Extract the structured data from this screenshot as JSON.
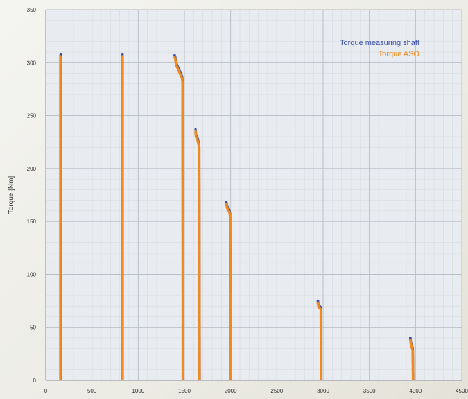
{
  "chart_data": {
    "type": "line",
    "title": "",
    "xlabel": "",
    "ylabel": "Torque [Nm]",
    "xlim": [
      0,
      4500
    ],
    "ylim": [
      0,
      350
    ],
    "x_ticks": [
      0,
      500,
      1000,
      1500,
      2000,
      2500,
      3000,
      3500,
      4000,
      4500
    ],
    "y_ticks": [
      0,
      50,
      100,
      150,
      200,
      250,
      300,
      350
    ],
    "grid": true,
    "legend_position": "top-right",
    "colors": {
      "shaft": "#3a4fb0",
      "aso": "#f08a1e"
    },
    "series": [
      {
        "name": "Torque measuring shaft",
        "segments": [
          [
            [
              150,
              308
            ],
            [
              160,
              308
            ],
            [
              160,
              0
            ]
          ],
          [
            [
              820,
              308
            ],
            [
              830,
              308
            ],
            [
              830,
              0
            ]
          ],
          [
            [
              1390,
              308
            ],
            [
              1400,
              306
            ],
            [
              1410,
              300
            ],
            [
              1440,
              294
            ],
            [
              1460,
              290
            ],
            [
              1475,
              287
            ],
            [
              1480,
              283
            ],
            [
              1485,
              0
            ]
          ],
          [
            [
              1610,
              237
            ],
            [
              1620,
              237
            ],
            [
              1625,
              232
            ],
            [
              1645,
              228
            ],
            [
              1660,
              222
            ],
            [
              1665,
              0
            ]
          ],
          [
            [
              1940,
              168
            ],
            [
              1955,
              168
            ],
            [
              1960,
              165
            ],
            [
              1985,
              161
            ],
            [
              1995,
              157
            ],
            [
              2000,
              0
            ]
          ],
          [
            [
              2930,
              75
            ],
            [
              2945,
              75
            ],
            [
              2950,
              71
            ],
            [
              2975,
              69
            ],
            [
              2980,
              0
            ]
          ],
          [
            [
              3930,
              40
            ],
            [
              3945,
              40
            ],
            [
              3950,
              36
            ],
            [
              3970,
              30
            ],
            [
              3975,
              0
            ]
          ]
        ]
      },
      {
        "name": "Torque ASO",
        "segments": [
          [
            [
              150,
              306
            ],
            [
              158,
              306
            ],
            [
              158,
              0
            ]
          ],
          [
            [
              820,
              306
            ],
            [
              828,
              306
            ],
            [
              828,
              0
            ]
          ],
          [
            [
              1390,
              306
            ],
            [
              1400,
              304
            ],
            [
              1410,
              298
            ],
            [
              1440,
              292
            ],
            [
              1460,
              288
            ],
            [
              1475,
              285
            ],
            [
              1480,
              281
            ],
            [
              1483,
              0
            ]
          ],
          [
            [
              1610,
              235
            ],
            [
              1620,
              235
            ],
            [
              1625,
              230
            ],
            [
              1645,
              226
            ],
            [
              1660,
              220
            ],
            [
              1663,
              0
            ]
          ],
          [
            [
              1940,
              166
            ],
            [
              1955,
              166
            ],
            [
              1960,
              163
            ],
            [
              1985,
              159
            ],
            [
              1995,
              155
            ],
            [
              1998,
              0
            ]
          ],
          [
            [
              2930,
              73
            ],
            [
              2945,
              73
            ],
            [
              2950,
              69
            ],
            [
              2975,
              67
            ],
            [
              2978,
              0
            ]
          ],
          [
            [
              3930,
              38
            ],
            [
              3945,
              38
            ],
            [
              3950,
              34
            ],
            [
              3970,
              28
            ],
            [
              3973,
              0
            ]
          ]
        ]
      }
    ]
  }
}
